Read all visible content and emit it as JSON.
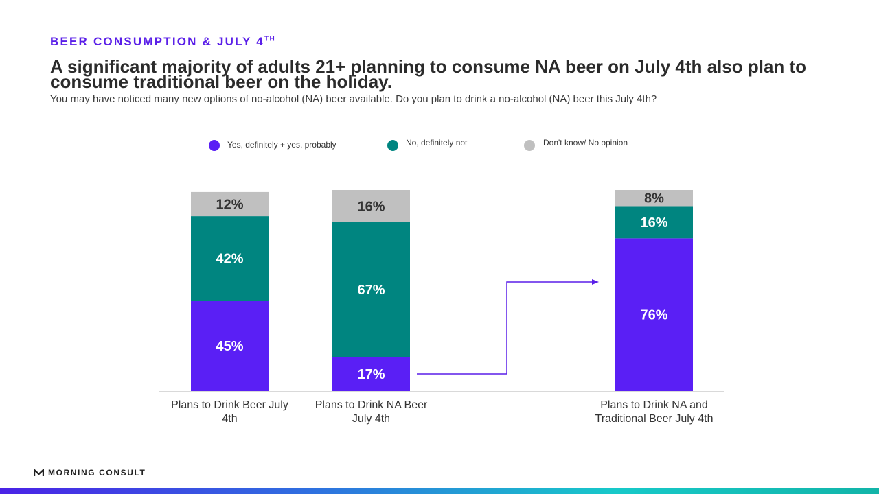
{
  "header": {
    "eyebrow": "BEER CONSUMPTION & JULY 4",
    "eyebrow_sup": "TH",
    "headline": "A significant majority of adults 21+ planning to consume NA beer on July 4th also plan to consume traditional beer on the holiday.",
    "subtitle": "You may have noticed many new options of no-alcohol (NA) beer available. Do you plan to drink a no-alcohol (NA) beer this July 4th?"
  },
  "footer": {
    "brand": "MORNING CONSULT"
  },
  "colors": {
    "yes": "#5a1ff5",
    "no": "#008580",
    "dont_know": "#c0c0c0",
    "accent": "#5a1fe8"
  },
  "chart_data": {
    "type": "bar",
    "stacked": true,
    "unit": "%",
    "categories": [
      "Plans to Drink Beer July 4th",
      "Plans to Drink NA Beer July 4th",
      "Plans to Drink NA and Traditional Beer July 4th"
    ],
    "series": [
      {
        "name": "Yes, definitely + yes, probably",
        "values": [
          45,
          17,
          76
        ]
      },
      {
        "name": "No, definitely not",
        "values": [
          42,
          67,
          16
        ]
      },
      {
        "name": "Don't know/ No opinion",
        "values": [
          12,
          16,
          8
        ]
      }
    ],
    "legend": "top",
    "annotation": "arrow from the Yes segment of the NA beer bar to the NA and traditional beer bar"
  }
}
